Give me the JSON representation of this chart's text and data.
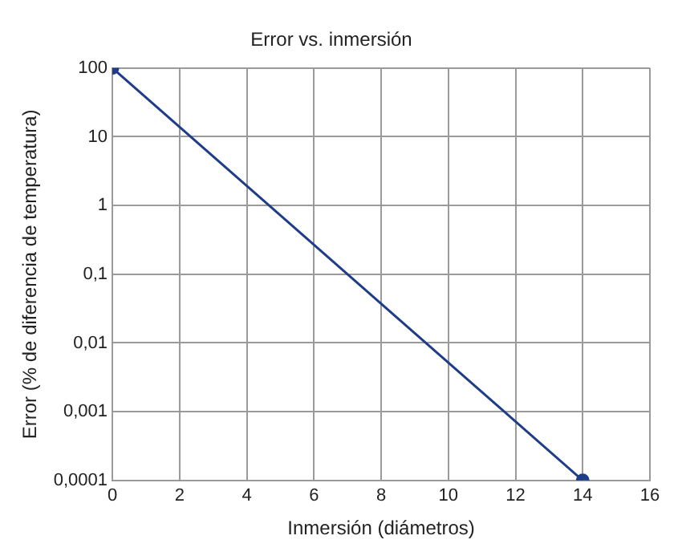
{
  "chart_data": {
    "type": "line",
    "title": "Error vs. inmersión",
    "xlabel": "Inmersión (diámetros)",
    "ylabel": "Error (% de diferencia de temperatura)",
    "x": [
      0,
      14
    ],
    "series": [
      {
        "color": "#1f3c88",
        "values": [
          100,
          0.0001
        ]
      }
    ],
    "xlim": [
      0,
      16
    ],
    "xticks": [
      0,
      2,
      4,
      6,
      8,
      10,
      12,
      14,
      16
    ],
    "ylim": [
      0.0001,
      100
    ],
    "yticks": [
      {
        "value": 0.0001,
        "label": "0,0001"
      },
      {
        "value": 0.001,
        "label": "0,001"
      },
      {
        "value": 0.01,
        "label": "0,01"
      },
      {
        "value": 0.1,
        "label": "0,1"
      },
      1,
      10,
      100
    ],
    "log": "y",
    "grid": true,
    "legend": false,
    "marker": "circle",
    "line_style": "solid"
  }
}
